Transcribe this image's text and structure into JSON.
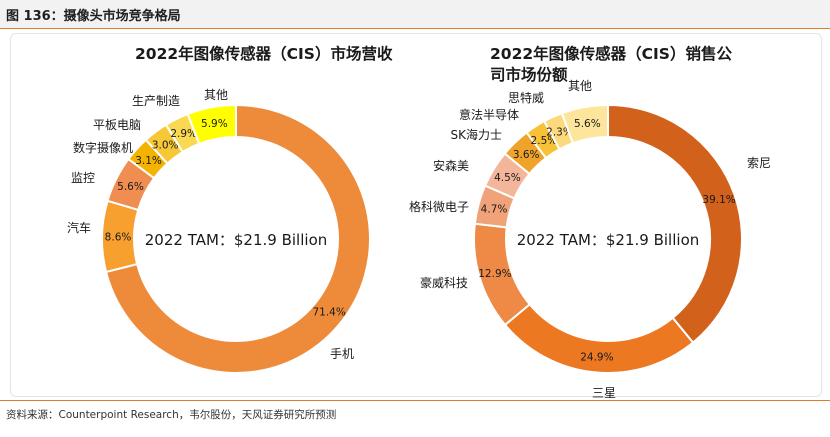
{
  "figure": {
    "title": "图 136：摄像头市场竞争格局",
    "source": "资料来源：Counterpoint Research，韦尔股份，天风证券研究所预测"
  },
  "chart_data": [
    {
      "type": "pie",
      "variant": "donut",
      "title": "2022年图像传感器（CIS）市场营收",
      "center_text": "2022 TAM：$21.9 Billion",
      "start": "top, clockwise",
      "categories": [
        "手机",
        "汽车",
        "监控",
        "数字摄像机",
        "平板电脑",
        "生产制造",
        "其他"
      ],
      "values": [
        71.4,
        8.6,
        5.6,
        3.1,
        3.0,
        2.9,
        5.9
      ],
      "value_labels": [
        "71.4%",
        "8.6%",
        "5.6%",
        "3.1%",
        "3.0%",
        "2.9%",
        "5.9%"
      ],
      "colors": [
        "#ed8b3b",
        "#f7a030",
        "#ef8e50",
        "#f4b300",
        "#f7c835",
        "#fbd851",
        "#ffff00"
      ]
    },
    {
      "type": "pie",
      "variant": "donut",
      "title": "2022年图像传感器（CIS）销售公司市场份额",
      "center_text": "2022 TAM：$21.9 Billion",
      "start": "top, clockwise",
      "categories": [
        "索尼",
        "三星",
        "豪威科技",
        "格科微电子",
        "安森美",
        "SK海力士",
        "意法半导体",
        "思特威",
        "其他"
      ],
      "values": [
        39.1,
        24.9,
        12.9,
        4.7,
        4.5,
        3.6,
        2.5,
        2.3,
        5.6
      ],
      "value_labels": [
        "39.1%",
        "24.9%",
        "12.9%",
        "4.7%",
        "4.5%",
        "3.6%",
        "2.5%",
        "2.3%",
        "5.6%"
      ],
      "colors": [
        "#d2611b",
        "#ec7822",
        "#ee8a46",
        "#f0a278",
        "#f4b69a",
        "#f0a32a",
        "#f8c236",
        "#fcd97c",
        "#fde59c"
      ]
    }
  ]
}
